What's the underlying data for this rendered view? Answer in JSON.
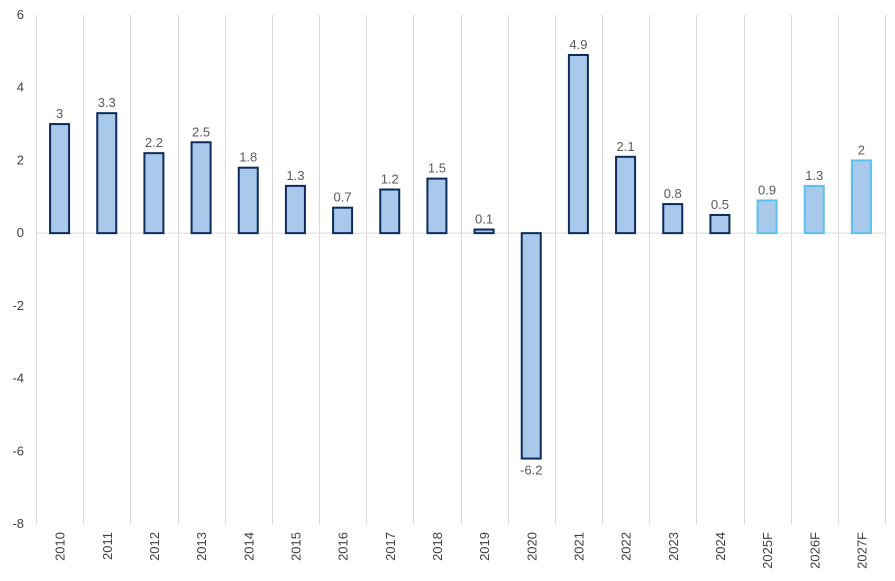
{
  "chart_data": {
    "type": "bar",
    "categories": [
      "2010",
      "2011",
      "2012",
      "2013",
      "2014",
      "2015",
      "2016",
      "2017",
      "2018",
      "2019",
      "2020",
      "2021",
      "2022",
      "2023",
      "2024",
      "2025F",
      "2026F",
      "2027F"
    ],
    "values": [
      3,
      3.3,
      2.2,
      2.5,
      1.8,
      1.3,
      0.7,
      1.2,
      1.5,
      0.1,
      -6.2,
      4.9,
      2.1,
      0.8,
      0.5,
      0.9,
      1.3,
      2
    ],
    "forecast_flags": [
      false,
      false,
      false,
      false,
      false,
      false,
      false,
      false,
      false,
      false,
      false,
      false,
      false,
      false,
      false,
      true,
      true,
      true
    ],
    "data_labels": [
      "3",
      "3.3",
      "2.2",
      "2.5",
      "1.8",
      "1.3",
      "0.7",
      "1.2",
      "1.5",
      "0.1",
      "-6.2",
      "4.9",
      "2.1",
      "0.8",
      "0.5",
      "0.9",
      "1.3",
      "2"
    ],
    "title": "",
    "xlabel": "",
    "ylabel": "",
    "ylim": [
      -8,
      6
    ],
    "yticks": [
      6,
      4,
      2,
      0,
      -2,
      -4,
      -6,
      -8
    ],
    "ytick_labels": [
      "6",
      "4",
      "2",
      "0",
      "-2",
      "-4",
      "-6",
      "-8"
    ],
    "grid": "vertical category separators",
    "legend": "none",
    "colors": {
      "bar_fill": "#a9c9ea",
      "actual_border": "#0d2a5c",
      "forecast_border": "#5cc0ec",
      "grid": "#d9d9d9",
      "tick_text": "#404040",
      "label_text": "#595959"
    }
  }
}
